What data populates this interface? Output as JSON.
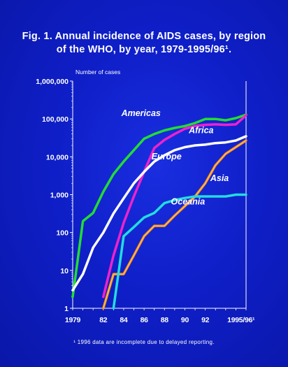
{
  "chart_data": {
    "type": "line",
    "title_line1": "Fig. 1. Annual incidence of AIDS cases, by region",
    "title_line2": "of the WHO, by year, 1979-1995/96¹.",
    "ylabel": "Number of cases",
    "y_scale": "log",
    "ylim": [
      1,
      1000000
    ],
    "xlim": [
      1979,
      1996
    ],
    "y_ticks": [
      "1",
      "10",
      "100",
      "1,000",
      "10,000",
      "100,000",
      "1,000,000"
    ],
    "x_ticks": [
      {
        "value": 1979,
        "label": "1979"
      },
      {
        "value": 1982,
        "label": "82"
      },
      {
        "value": 1984,
        "label": "84"
      },
      {
        "value": 1986,
        "label": "86"
      },
      {
        "value": 1988,
        "label": "88"
      },
      {
        "value": 1990,
        "label": "90"
      },
      {
        "value": 1992,
        "label": "92"
      },
      {
        "value": 1995.5,
        "label": "1995/96¹"
      }
    ],
    "series": [
      {
        "name": "Americas",
        "color": "#22dd33",
        "x": [
          1979,
          1980,
          1981,
          1982,
          1983,
          1984,
          1985,
          1986,
          1987,
          1988,
          1989,
          1990,
          1991,
          1992,
          1993,
          1994,
          1995,
          1996
        ],
        "y": [
          2,
          200,
          330,
          1200,
          3500,
          7500,
          15000,
          30000,
          40000,
          50000,
          58000,
          65000,
          78000,
          100000,
          100000,
          92000,
          105000,
          130000
        ]
      },
      {
        "name": "Africa",
        "color": "#ee22cc",
        "x": [
          1982,
          1983,
          1984,
          1985,
          1986,
          1987,
          1988,
          1989,
          1990,
          1991,
          1992,
          1993,
          1994,
          1995,
          1996
        ],
        "y": [
          2,
          25,
          180,
          900,
          4000,
          17000,
          28000,
          40000,
          55000,
          65000,
          70000,
          72000,
          70000,
          72000,
          125000
        ]
      },
      {
        "name": "Europe",
        "color": "#ffffff",
        "x": [
          1979,
          1980,
          1981,
          1982,
          1983,
          1984,
          1985,
          1986,
          1987,
          1988,
          1989,
          1990,
          1991,
          1992,
          1993,
          1994,
          1995,
          1996
        ],
        "y": [
          3,
          8,
          40,
          100,
          320,
          800,
          2000,
          4000,
          7500,
          11000,
          15000,
          18000,
          20000,
          21000,
          23000,
          24000,
          27000,
          35000
        ]
      },
      {
        "name": "Asia",
        "color": "#ff8811",
        "x": [
          1982,
          1983,
          1984,
          1985,
          1986,
          1987,
          1988,
          1989,
          1990,
          1991,
          1992,
          1993,
          1994,
          1995,
          1996
        ],
        "y": [
          1,
          8,
          8,
          25,
          80,
          150,
          150,
          280,
          500,
          900,
          2000,
          6000,
          12000,
          18000,
          27000
        ]
      },
      {
        "name": "Oceania",
        "color": "#22dddd",
        "x": [
          1983,
          1984,
          1985,
          1986,
          1987,
          1988,
          1989,
          1990,
          1991,
          1992,
          1993,
          1994,
          1995,
          1996
        ],
        "y": [
          1,
          80,
          140,
          250,
          330,
          600,
          720,
          820,
          900,
          900,
          900,
          900,
          1000,
          1000
        ]
      }
    ]
  },
  "footnote": "¹ 1996  data are incomplete due to delayed reporting."
}
